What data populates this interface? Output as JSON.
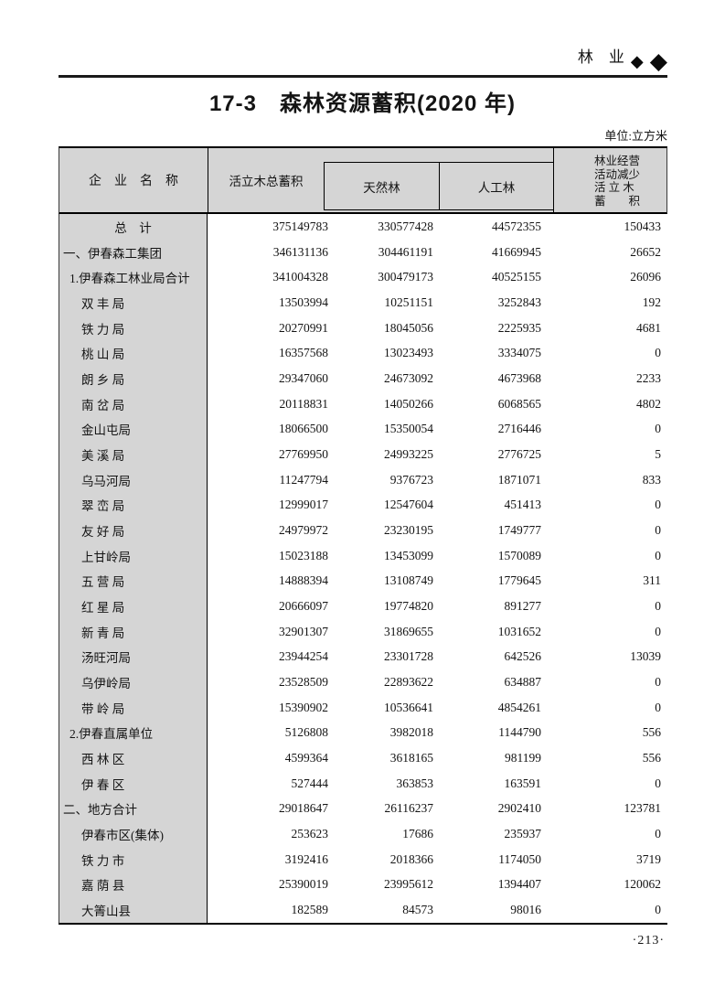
{
  "page": {
    "section_label": "林　业",
    "section_mark": "◆",
    "title": "17-3　森林资源蓄积(2020 年)",
    "unit_note": "单位:立方米",
    "page_number": "·213·"
  },
  "table": {
    "stub_header": "企　业　名　称",
    "col_total": "活立木总蓄积",
    "col_natural": "天然林",
    "col_planted": "人工林",
    "col_decrease_lines": [
      "林业经营",
      "活动减少",
      "活 立 木",
      "蓄　　积"
    ],
    "rows": [
      {
        "name": "总　计",
        "indent": "center",
        "values": [
          "375149783",
          "330577428",
          "44572355",
          "150433"
        ]
      },
      {
        "name": "一、伊春森工集团",
        "indent": "0",
        "values": [
          "346131136",
          "304461191",
          "41669945",
          "26652"
        ]
      },
      {
        "name": "1.伊春森工林业局合计",
        "indent": "1",
        "values": [
          "341004328",
          "300479173",
          "40525155",
          "26096"
        ]
      },
      {
        "name": "双 丰 局",
        "indent": "2",
        "values": [
          "13503994",
          "10251151",
          "3252843",
          "192"
        ]
      },
      {
        "name": "铁 力 局",
        "indent": "2",
        "values": [
          "20270991",
          "18045056",
          "2225935",
          "4681"
        ]
      },
      {
        "name": "桃 山 局",
        "indent": "2",
        "values": [
          "16357568",
          "13023493",
          "3334075",
          "0"
        ]
      },
      {
        "name": "朗 乡 局",
        "indent": "2",
        "values": [
          "29347060",
          "24673092",
          "4673968",
          "2233"
        ]
      },
      {
        "name": "南 岔 局",
        "indent": "2",
        "values": [
          "20118831",
          "14050266",
          "6068565",
          "4802"
        ]
      },
      {
        "name": "金山屯局",
        "indent": "2",
        "values": [
          "18066500",
          "15350054",
          "2716446",
          "0"
        ]
      },
      {
        "name": "美 溪 局",
        "indent": "2",
        "values": [
          "27769950",
          "24993225",
          "2776725",
          "5"
        ]
      },
      {
        "name": "乌马河局",
        "indent": "2",
        "values": [
          "11247794",
          "9376723",
          "1871071",
          "833"
        ]
      },
      {
        "name": "翠 峦 局",
        "indent": "2",
        "values": [
          "12999017",
          "12547604",
          "451413",
          "0"
        ]
      },
      {
        "name": "友 好 局",
        "indent": "2",
        "values": [
          "24979972",
          "23230195",
          "1749777",
          "0"
        ]
      },
      {
        "name": "上甘岭局",
        "indent": "2",
        "values": [
          "15023188",
          "13453099",
          "1570089",
          "0"
        ]
      },
      {
        "name": "五 营 局",
        "indent": "2",
        "values": [
          "14888394",
          "13108749",
          "1779645",
          "311"
        ]
      },
      {
        "name": "红 星 局",
        "indent": "2",
        "values": [
          "20666097",
          "19774820",
          "891277",
          "0"
        ]
      },
      {
        "name": "新 青 局",
        "indent": "2",
        "values": [
          "32901307",
          "31869655",
          "1031652",
          "0"
        ]
      },
      {
        "name": "汤旺河局",
        "indent": "2",
        "values": [
          "23944254",
          "23301728",
          "642526",
          "13039"
        ]
      },
      {
        "name": "乌伊岭局",
        "indent": "2",
        "values": [
          "23528509",
          "22893622",
          "634887",
          "0"
        ]
      },
      {
        "name": "带 岭 局",
        "indent": "2",
        "values": [
          "15390902",
          "10536641",
          "4854261",
          "0"
        ]
      },
      {
        "name": "2.伊春直属单位",
        "indent": "1",
        "values": [
          "5126808",
          "3982018",
          "1144790",
          "556"
        ]
      },
      {
        "name": "西 林 区",
        "indent": "2",
        "values": [
          "4599364",
          "3618165",
          "981199",
          "556"
        ]
      },
      {
        "name": "伊 春 区",
        "indent": "2",
        "values": [
          "527444",
          "363853",
          "163591",
          "0"
        ]
      },
      {
        "name": "二、地方合计",
        "indent": "0",
        "values": [
          "29018647",
          "26116237",
          "2902410",
          "123781"
        ]
      },
      {
        "name": "伊春市区(集体)",
        "indent": "2",
        "values": [
          "253623",
          "17686",
          "235937",
          "0"
        ]
      },
      {
        "name": "铁 力 市",
        "indent": "2",
        "values": [
          "3192416",
          "2018366",
          "1174050",
          "3719"
        ]
      },
      {
        "name": "嘉 荫 县",
        "indent": "2",
        "values": [
          "25390019",
          "23995612",
          "1394407",
          "120062"
        ]
      },
      {
        "name": "大箐山县",
        "indent": "2",
        "values": [
          "182589",
          "84573",
          "98016",
          "0"
        ]
      }
    ]
  }
}
